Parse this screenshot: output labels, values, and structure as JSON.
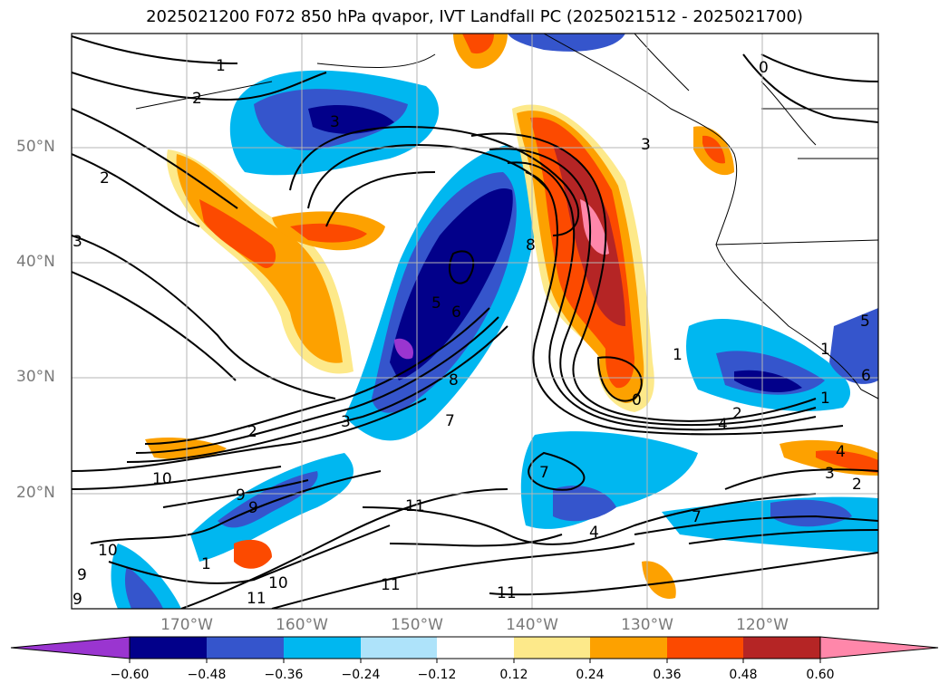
{
  "title": "2025021200 F072 850 hPa qvapor, IVT Landfall PC (2025021512 - 2025021700)",
  "lat_labels": [
    "50°N",
    "40°N",
    "30°N",
    "20°N"
  ],
  "lon_labels": [
    "170°W",
    "160°W",
    "150°W",
    "140°W",
    "130°W",
    "120°W"
  ],
  "colorbar": {
    "ticks": [
      "−0.60",
      "−0.48",
      "−0.36",
      "−0.24",
      "−0.12",
      "0.12",
      "0.24",
      "0.36",
      "0.48",
      "0.60"
    ],
    "colors": [
      "#9a35d0",
      "#02008a",
      "#3555cc",
      "#00b7f0",
      "#aee3fa",
      "#ffffff",
      "#fde98a",
      "#fda100",
      "#fc4a00",
      "#b52525",
      "#ff87aa"
    ]
  },
  "contour_labels": [
    "1",
    "2",
    "3",
    "0",
    "3",
    "2",
    "3",
    "5",
    "6",
    "8",
    "8",
    "1",
    "0",
    "4",
    "2",
    "2",
    "3",
    "7",
    "7",
    "10",
    "9",
    "9",
    "11",
    "1",
    "10",
    "9",
    "10",
    "11",
    "11",
    "11",
    "4",
    "1",
    "5",
    "6",
    "1",
    "3",
    "2",
    "7",
    "4",
    "9"
  ]
}
